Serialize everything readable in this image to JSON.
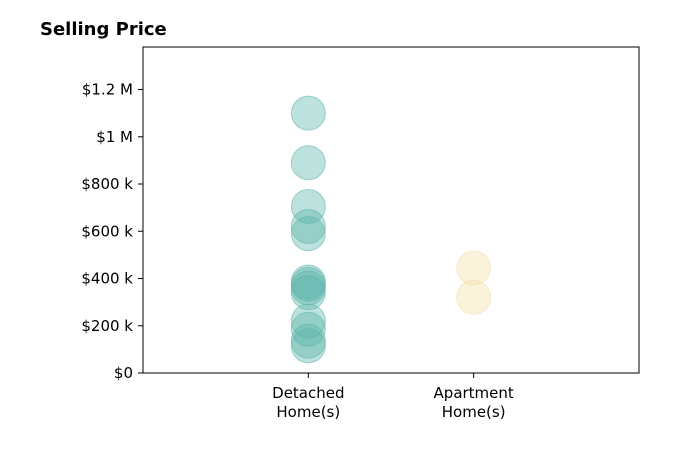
{
  "chart_data": {
    "type": "scatter",
    "title": "Selling Price",
    "xlabel": "",
    "ylabel": "",
    "categories": [
      "Detached\nHome(s)",
      "Apartment\nHome(s)"
    ],
    "xlim": [
      -1,
      2
    ],
    "ylim": [
      0,
      1380000
    ],
    "y_ticks": [
      0,
      200000,
      400000,
      600000,
      800000,
      1000000,
      1200000
    ],
    "y_tick_labels": [
      "$0",
      "$200 k",
      "$400 k",
      "$600 k",
      "$800 k",
      "$1 M",
      "$1.2 M"
    ],
    "grid": false,
    "series": [
      {
        "color": "#5bb5aa",
        "category_index": 0,
        "values": [
          1100000,
          890000,
          705000,
          620000,
          590000,
          385000,
          375000,
          360000,
          340000,
          220000,
          185000,
          135000,
          115000
        ]
      },
      {
        "color": "#f5dfa8",
        "category_index": 1,
        "values": [
          445000,
          320000
        ]
      }
    ]
  }
}
